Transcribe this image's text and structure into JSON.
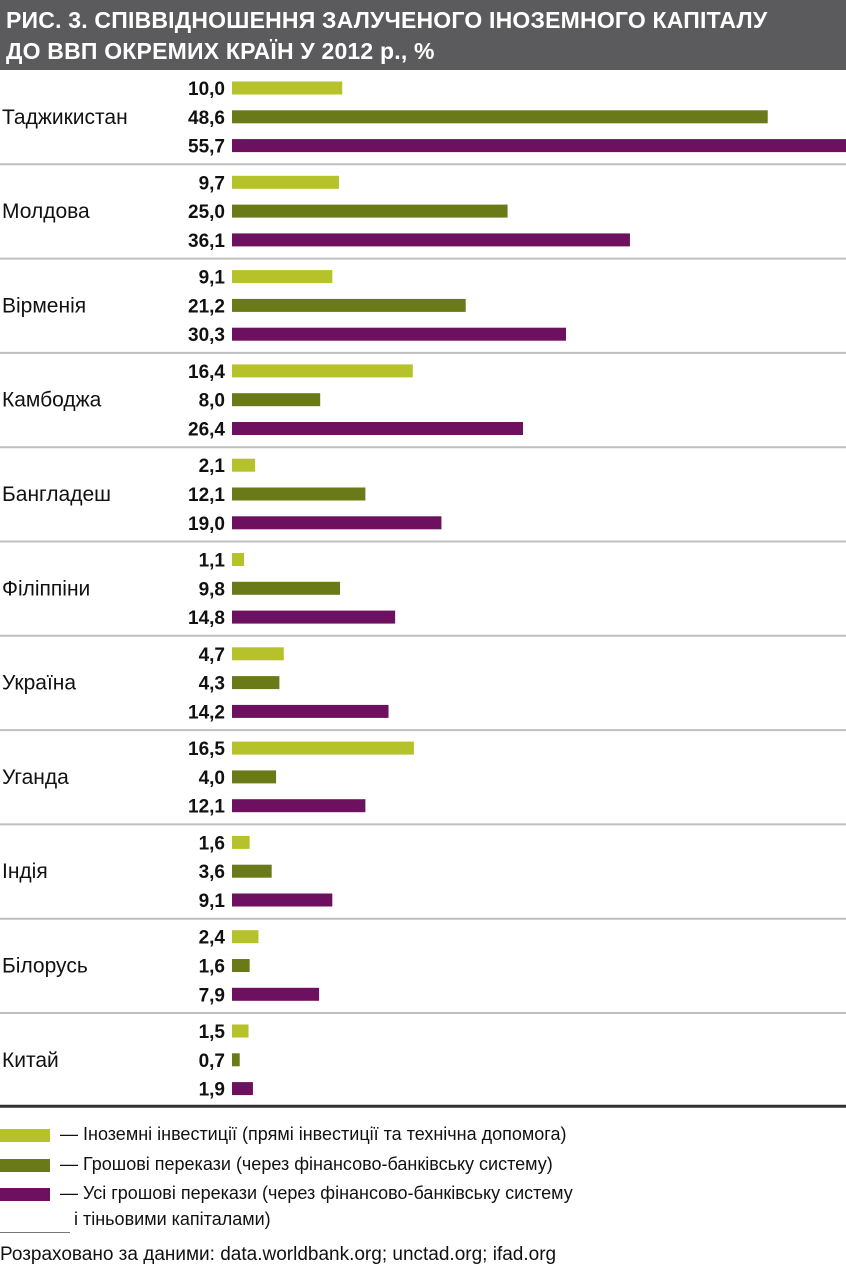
{
  "header": {
    "title_line1": "РИС. 3. СПІВВІДНОШЕННЯ ЗАЛУЧЕНОГО ІНОЗЕМНОГО КАПІТАЛУ",
    "title_line2": "ДО ВВП ОКРЕМИХ КРАЇН У 2012 р., %"
  },
  "colors": {
    "foreign_investment": "#b5c22a",
    "remittances_banking": "#6b7a18",
    "remittances_all": "#6e1060",
    "separator": "#bfbfbf",
    "baseline": "#333333"
  },
  "chart_data": {
    "type": "bar",
    "orientation": "horizontal",
    "title": "РИС. 3. СПІВВІДНОШЕННЯ ЗАЛУЧЕНОГО ІНОЗЕМНОГО КАПІТАЛУ ДО ВВП ОКРЕМИХ КРАЇН У 2012 р., %",
    "categories": [
      "Таджикистан",
      "Молдова",
      "Вірменія",
      "Камбоджа",
      "Бангладеш",
      "Філіппіни",
      "Україна",
      "Уганда",
      "Індія",
      "Білорусь",
      "Китай"
    ],
    "series": [
      {
        "name": "Іноземні інвестиції (прямі інвестиції та технічна допомога)",
        "color": "#b5c22a",
        "values": [
          10.0,
          9.7,
          9.1,
          16.4,
          2.1,
          1.1,
          4.7,
          16.5,
          1.6,
          2.4,
          1.5
        ],
        "labels": [
          "10,0",
          "9,7",
          "9,1",
          "16,4",
          "2,1",
          "1,1",
          "4,7",
          "16,5",
          "1,6",
          "2,4",
          "1,5"
        ]
      },
      {
        "name": "Грошові перекази (через фінансово-банківську систему)",
        "color": "#6b7a18",
        "values": [
          48.6,
          25.0,
          21.2,
          8.0,
          12.1,
          9.8,
          4.3,
          4.0,
          3.6,
          1.6,
          0.7
        ],
        "labels": [
          "48,6",
          "25,0",
          "21,2",
          "8,0",
          "12,1",
          "9,8",
          "4,3",
          "4,0",
          "3,6",
          "1,6",
          "0,7"
        ]
      },
      {
        "name": "Усі грошові перекази (через фінансово-банківську систему і тіньовими капіталами)",
        "color": "#6e1060",
        "values": [
          55.7,
          36.1,
          30.3,
          26.4,
          19.0,
          14.8,
          14.2,
          12.1,
          9.1,
          7.9,
          1.9
        ],
        "labels": [
          "55,7",
          "36,1",
          "30,3",
          "26,4",
          "19,0",
          "14,8",
          "14,2",
          "12,1",
          "9,1",
          "7,9",
          "1,9"
        ]
      }
    ],
    "xlim": [
      0,
      55.7
    ],
    "grid": false,
    "legend_position": "bottom"
  },
  "legend": {
    "item1": "— Іноземні інвестиції (прямі інвестиції та технічна допомога)",
    "item2": "— Грошові перекази (через фінансово-банківську систему)",
    "item3_line1": "— Усі грошові перекази (через фінансово-банківську систему",
    "item3_line2": "і тіньовими капіталами)"
  },
  "source": "Розраховано за даними: data.worldbank.org; unctad.org; ifad.org"
}
